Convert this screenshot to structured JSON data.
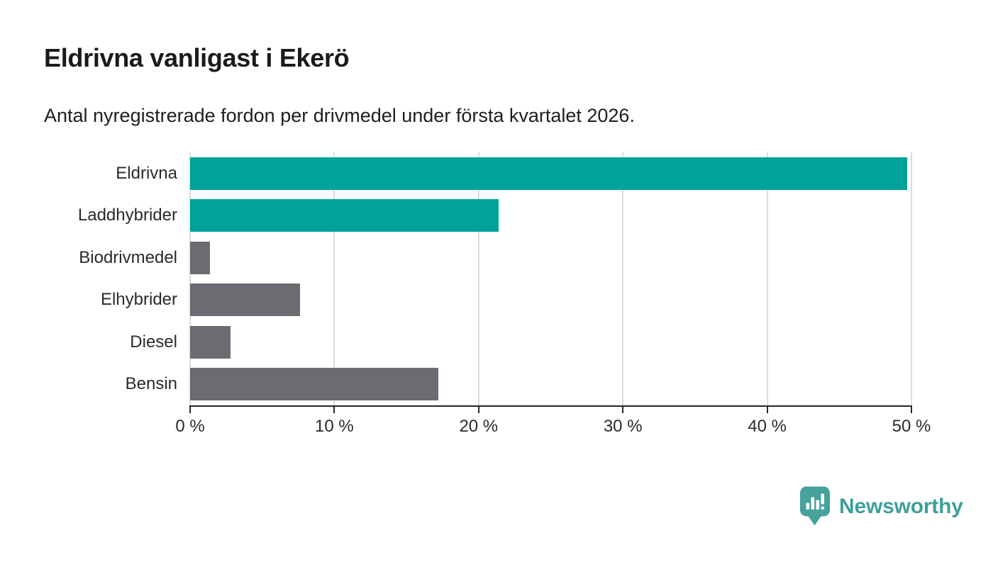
{
  "header": {
    "title": "Eldrivna vanligast i Ekerö",
    "subtitle": "Antal nyregistrerade fordon per drivmedel under första kvartalet 2026."
  },
  "chart_data": {
    "type": "bar",
    "orientation": "horizontal",
    "categories": [
      "Eldrivna",
      "Laddhybrider",
      "Biodrivmedel",
      "Elhybrider",
      "Diesel",
      "Bensin"
    ],
    "values": [
      49.7,
      21.4,
      1.4,
      7.6,
      2.8,
      17.2
    ],
    "unit": "%",
    "bar_colors": [
      "#00a299",
      "#00a299",
      "#6b6b71",
      "#6b6b71",
      "#6b6b71",
      "#6b6b71"
    ],
    "x_ticks": [
      "0 %",
      "10 %",
      "20 %",
      "30 %",
      "40 %",
      "50 %"
    ],
    "xlim": [
      0,
      50
    ],
    "grid": "vertical",
    "legend": "none"
  },
  "colors": {
    "highlight_teal": "#00a299",
    "neutral_gray": "#6b6b71",
    "gridline": "#dcdcdc",
    "axis": "#262626",
    "logo_teal": "#47a19d",
    "logo_text_teal": "#3f9f9b"
  },
  "branding": {
    "logo_text": "Newsworthy",
    "logo_icon": "newsworthy-pin-barchart-icon"
  }
}
